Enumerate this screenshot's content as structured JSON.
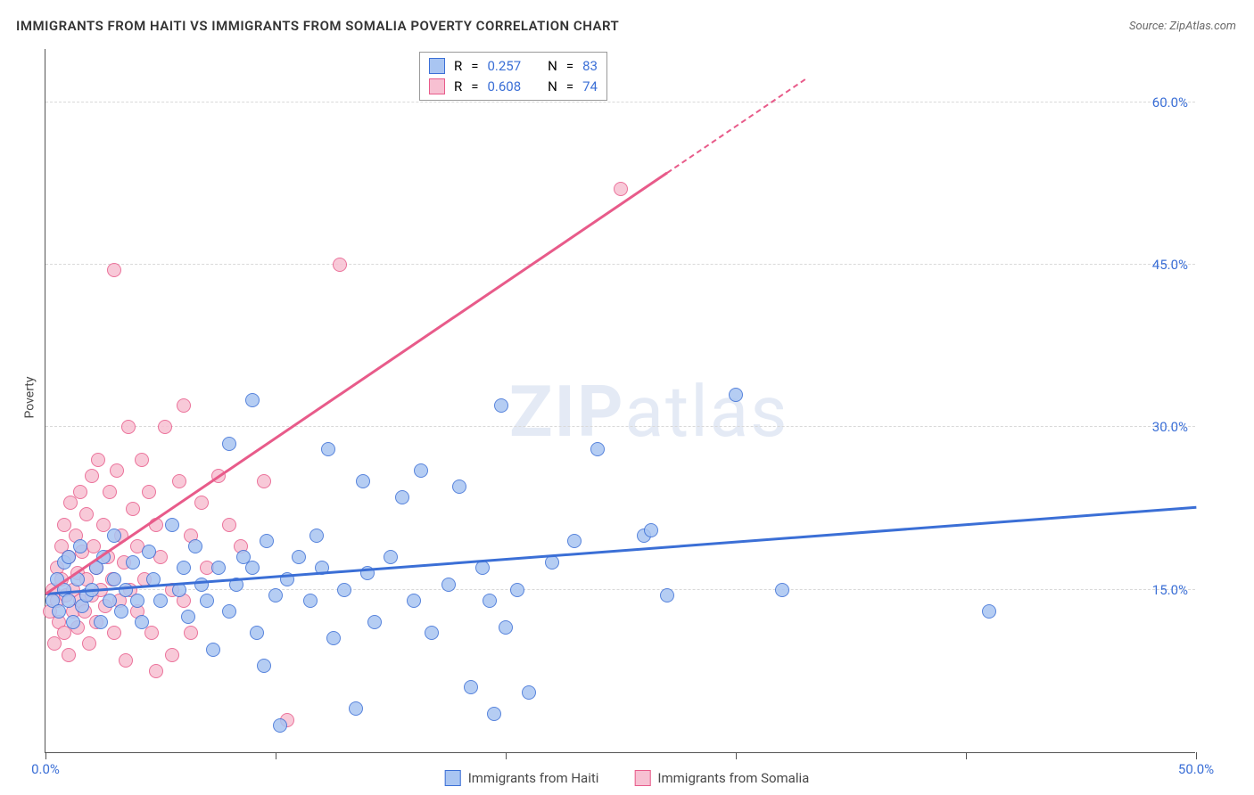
{
  "title": "IMMIGRANTS FROM HAITI VS IMMIGRANTS FROM SOMALIA POVERTY CORRELATION CHART",
  "source": "Source: ZipAtlas.com",
  "y_axis_label": "Poverty",
  "watermark": {
    "bold": "ZIP",
    "rest": "atlas"
  },
  "chart": {
    "type": "scatter",
    "background_color": "#ffffff",
    "grid_color": "#d9d9d9",
    "axis_color": "#555555",
    "xlim": [
      0,
      50
    ],
    "ylim": [
      0,
      65
    ],
    "x_ticks": [
      0,
      10,
      20,
      30,
      40,
      50
    ],
    "x_tick_labels": {
      "0": "0.0%",
      "50": "50.0%"
    },
    "y_ticks": [
      15,
      30,
      45,
      60
    ],
    "y_tick_labels": {
      "15": "15.0%",
      "30": "30.0%",
      "45": "45.0%",
      "60": "60.0%"
    },
    "marker_radius": 8,
    "marker_border_width": 1.5,
    "marker_fill_opacity": 0.35,
    "series": {
      "haiti": {
        "label": "Immigrants from Haiti",
        "color_border": "#3b6fd6",
        "color_fill": "#a9c5f2",
        "r": "0.257",
        "n": "83",
        "trend": {
          "x1": 0,
          "y1": 14.5,
          "x2": 50,
          "y2": 22.5,
          "dashed_from_x": null
        },
        "points": [
          [
            0.3,
            14
          ],
          [
            0.5,
            16
          ],
          [
            0.6,
            13
          ],
          [
            0.8,
            17.5
          ],
          [
            0.8,
            15
          ],
          [
            1,
            18
          ],
          [
            1,
            14
          ],
          [
            1.2,
            12
          ],
          [
            1.4,
            16
          ],
          [
            1.5,
            19
          ],
          [
            1.6,
            13.5
          ],
          [
            1.8,
            14.5
          ],
          [
            2,
            15
          ],
          [
            2.2,
            17
          ],
          [
            2.4,
            12
          ],
          [
            2.5,
            18
          ],
          [
            2.8,
            14
          ],
          [
            3,
            16
          ],
          [
            3,
            20
          ],
          [
            3.3,
            13
          ],
          [
            3.5,
            15
          ],
          [
            3.8,
            17.5
          ],
          [
            4,
            14
          ],
          [
            4.2,
            12
          ],
          [
            4.5,
            18.5
          ],
          [
            4.7,
            16
          ],
          [
            5,
            14
          ],
          [
            5.5,
            21
          ],
          [
            5.8,
            15
          ],
          [
            6,
            17
          ],
          [
            6.2,
            12.5
          ],
          [
            6.5,
            19
          ],
          [
            6.8,
            15.5
          ],
          [
            7,
            14
          ],
          [
            7.3,
            9.5
          ],
          [
            7.5,
            17
          ],
          [
            8,
            13
          ],
          [
            8,
            28.5
          ],
          [
            8.3,
            15.5
          ],
          [
            8.6,
            18
          ],
          [
            9,
            32.5
          ],
          [
            9,
            17
          ],
          [
            9.2,
            11
          ],
          [
            9.5,
            8
          ],
          [
            9.6,
            19.5
          ],
          [
            10,
            14.5
          ],
          [
            10.2,
            2.5
          ],
          [
            10.5,
            16
          ],
          [
            11,
            18
          ],
          [
            11.5,
            14
          ],
          [
            11.8,
            20
          ],
          [
            12,
            17
          ],
          [
            12.3,
            28
          ],
          [
            12.5,
            10.5
          ],
          [
            13,
            15
          ],
          [
            13.5,
            4
          ],
          [
            13.8,
            25
          ],
          [
            14,
            16.5
          ],
          [
            14.3,
            12
          ],
          [
            15,
            18
          ],
          [
            15.5,
            23.5
          ],
          [
            16,
            14
          ],
          [
            16.3,
            26
          ],
          [
            16.8,
            11
          ],
          [
            17.5,
            15.5
          ],
          [
            18,
            24.5
          ],
          [
            18.5,
            6
          ],
          [
            19,
            17
          ],
          [
            19.3,
            14
          ],
          [
            19.8,
            32
          ],
          [
            20,
            11.5
          ],
          [
            20.5,
            15
          ],
          [
            21,
            5.5
          ],
          [
            22,
            17.5
          ],
          [
            23,
            19.5
          ],
          [
            24,
            28
          ],
          [
            26,
            20
          ],
          [
            26.3,
            20.5
          ],
          [
            27,
            14.5
          ],
          [
            30,
            33
          ],
          [
            32,
            15
          ],
          [
            41,
            13
          ],
          [
            19.5,
            3.5
          ]
        ]
      },
      "somalia": {
        "label": "Immigrants from Somalia",
        "color_border": "#e85b8a",
        "color_fill": "#f7c0d2",
        "r": "0.608",
        "n": "74",
        "trend": {
          "x1": 0,
          "y1": 14.5,
          "x2": 33,
          "y2": 62,
          "dashed_from_x": 27
        },
        "points": [
          [
            0.2,
            13
          ],
          [
            0.3,
            15
          ],
          [
            0.4,
            10
          ],
          [
            0.5,
            17
          ],
          [
            0.5,
            14
          ],
          [
            0.6,
            12
          ],
          [
            0.7,
            19
          ],
          [
            0.7,
            16
          ],
          [
            0.8,
            11
          ],
          [
            0.8,
            21
          ],
          [
            0.9,
            14.5
          ],
          [
            1,
            18
          ],
          [
            1,
            9
          ],
          [
            1.1,
            23
          ],
          [
            1.2,
            15
          ],
          [
            1.2,
            13
          ],
          [
            1.3,
            20
          ],
          [
            1.4,
            16.5
          ],
          [
            1.4,
            11.5
          ],
          [
            1.5,
            24
          ],
          [
            1.5,
            14
          ],
          [
            1.6,
            18.5
          ],
          [
            1.7,
            13
          ],
          [
            1.8,
            22
          ],
          [
            1.8,
            16
          ],
          [
            1.9,
            10
          ],
          [
            2,
            25.5
          ],
          [
            2,
            14.5
          ],
          [
            2.1,
            19
          ],
          [
            2.2,
            12
          ],
          [
            2.2,
            17
          ],
          [
            2.3,
            27
          ],
          [
            2.4,
            15
          ],
          [
            2.5,
            21
          ],
          [
            2.6,
            13.5
          ],
          [
            2.7,
            18
          ],
          [
            2.8,
            24
          ],
          [
            2.9,
            16
          ],
          [
            3,
            11
          ],
          [
            3,
            44.5
          ],
          [
            3.1,
            26
          ],
          [
            3.2,
            14
          ],
          [
            3.3,
            20
          ],
          [
            3.4,
            17.5
          ],
          [
            3.5,
            8.5
          ],
          [
            3.6,
            30
          ],
          [
            3.7,
            15
          ],
          [
            3.8,
            22.5
          ],
          [
            4,
            19
          ],
          [
            4,
            13
          ],
          [
            4.2,
            27
          ],
          [
            4.3,
            16
          ],
          [
            4.5,
            24
          ],
          [
            4.6,
            11
          ],
          [
            4.8,
            21
          ],
          [
            5,
            18
          ],
          [
            5.2,
            30
          ],
          [
            5.5,
            15
          ],
          [
            5.8,
            25
          ],
          [
            6,
            14
          ],
          [
            6,
            32
          ],
          [
            6.3,
            20
          ],
          [
            6.3,
            11
          ],
          [
            6.8,
            23
          ],
          [
            7,
            17
          ],
          [
            7.5,
            25.5
          ],
          [
            8,
            21
          ],
          [
            8.5,
            19
          ],
          [
            9.5,
            25
          ],
          [
            10.5,
            3
          ],
          [
            12.8,
            45
          ],
          [
            25,
            52
          ],
          [
            5.5,
            9
          ],
          [
            4.8,
            7.5
          ]
        ]
      }
    }
  },
  "stats_legend": {
    "r_label": "R",
    "n_label": "N",
    "equals": "="
  },
  "colors": {
    "text_primary": "#333333",
    "text_secondary": "#6a6a6a",
    "text_axis": "#4a4a4a",
    "tick_value": "#3b6fd6"
  }
}
